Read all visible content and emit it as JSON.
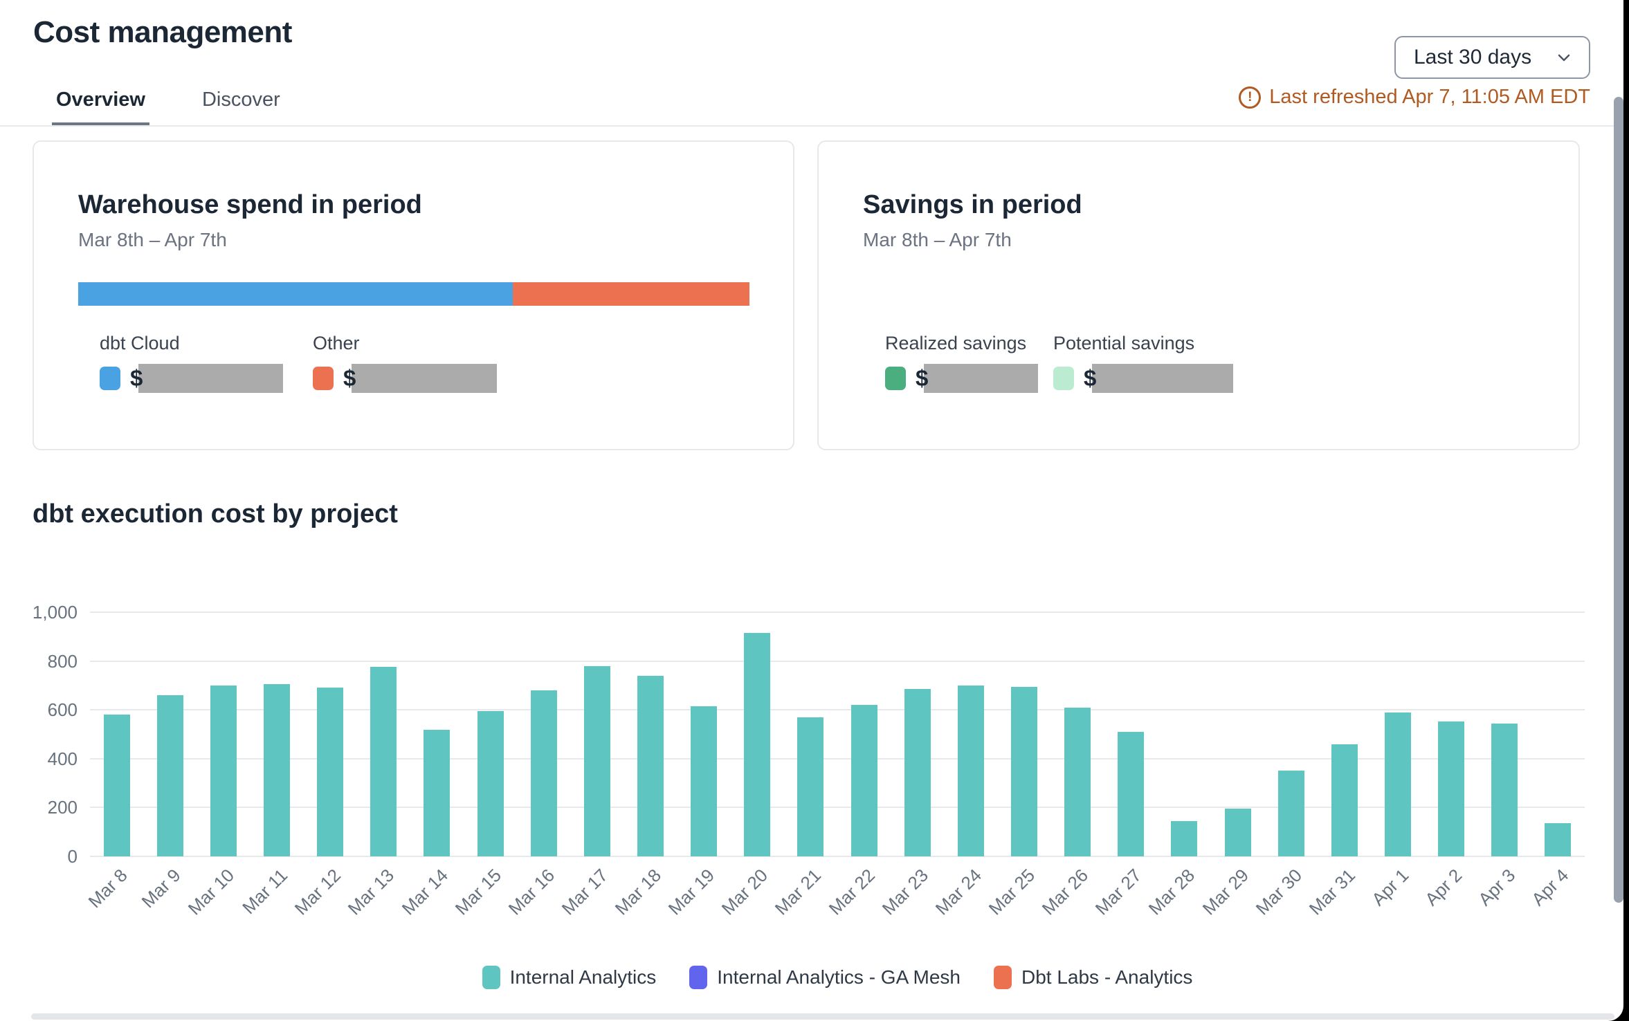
{
  "header": {
    "title": "Cost management",
    "tabs": [
      {
        "label": "Overview",
        "active": true
      },
      {
        "label": "Discover",
        "active": false
      }
    ],
    "period_dropdown": {
      "value": "Last 30 days"
    },
    "refresh_notice": "Last refreshed Apr 7, 11:05 AM EDT",
    "refresh_color": "#b05a21"
  },
  "cards": {
    "warehouse_spend": {
      "title": "Warehouse spend in period",
      "date_range": "Mar 8th – Apr 7th",
      "currency": "$",
      "segments": [
        {
          "label": "dbt Cloud",
          "color": "#4ba2e3",
          "percent": 64.7,
          "value_redacted": true
        },
        {
          "label": "Other",
          "color": "#ec7150",
          "percent": 35.3,
          "value_redacted": true
        }
      ]
    },
    "savings": {
      "title": "Savings in period",
      "date_range": "Mar 8th – Apr 7th",
      "currency": "$",
      "items": [
        {
          "label": "Realized savings",
          "color": "#4bae7e",
          "value_redacted": true
        },
        {
          "label": "Potential savings",
          "color": "#bbebd1",
          "value_redacted": true
        }
      ]
    }
  },
  "chart_data": {
    "type": "bar",
    "title": "dbt execution cost by project",
    "categories": [
      "Mar 8",
      "Mar 9",
      "Mar 10",
      "Mar 11",
      "Mar 12",
      "Mar 13",
      "Mar 14",
      "Mar 15",
      "Mar 16",
      "Mar 17",
      "Mar 18",
      "Mar 19",
      "Mar 20",
      "Mar 21",
      "Mar 22",
      "Mar 23",
      "Mar 24",
      "Mar 25",
      "Mar 26",
      "Mar 27",
      "Mar 28",
      "Mar 29",
      "Mar 30",
      "Mar 31",
      "Apr 1",
      "Apr 2",
      "Apr 3",
      "Apr 4"
    ],
    "series": [
      {
        "name": "Internal Analytics",
        "color": "#5ec5c0",
        "values": [
          580,
          660,
          700,
          705,
          690,
          775,
          518,
          595,
          680,
          780,
          740,
          615,
          915,
          570,
          620,
          685,
          700,
          695,
          610,
          510,
          145,
          195,
          350,
          460,
          590,
          552,
          545,
          135
        ]
      }
    ],
    "legend": [
      {
        "name": "Internal Analytics",
        "color": "#5ec5c0"
      },
      {
        "name": "Internal Analytics - GA Mesh",
        "color": "#6165ee"
      },
      {
        "name": "Dbt Labs - Analytics",
        "color": "#ec7150"
      }
    ],
    "xlabel": "",
    "ylabel": "",
    "ylim": [
      0,
      1000
    ],
    "yticks": [
      {
        "value": 0,
        "label": "0"
      },
      {
        "value": 200,
        "label": "200"
      },
      {
        "value": 400,
        "label": "400"
      },
      {
        "value": 600,
        "label": "600"
      },
      {
        "value": 800,
        "label": "800"
      },
      {
        "value": 1000,
        "label": "1,000"
      }
    ],
    "grid": true,
    "legend_position": "bottom",
    "x_label_angle": -45
  }
}
